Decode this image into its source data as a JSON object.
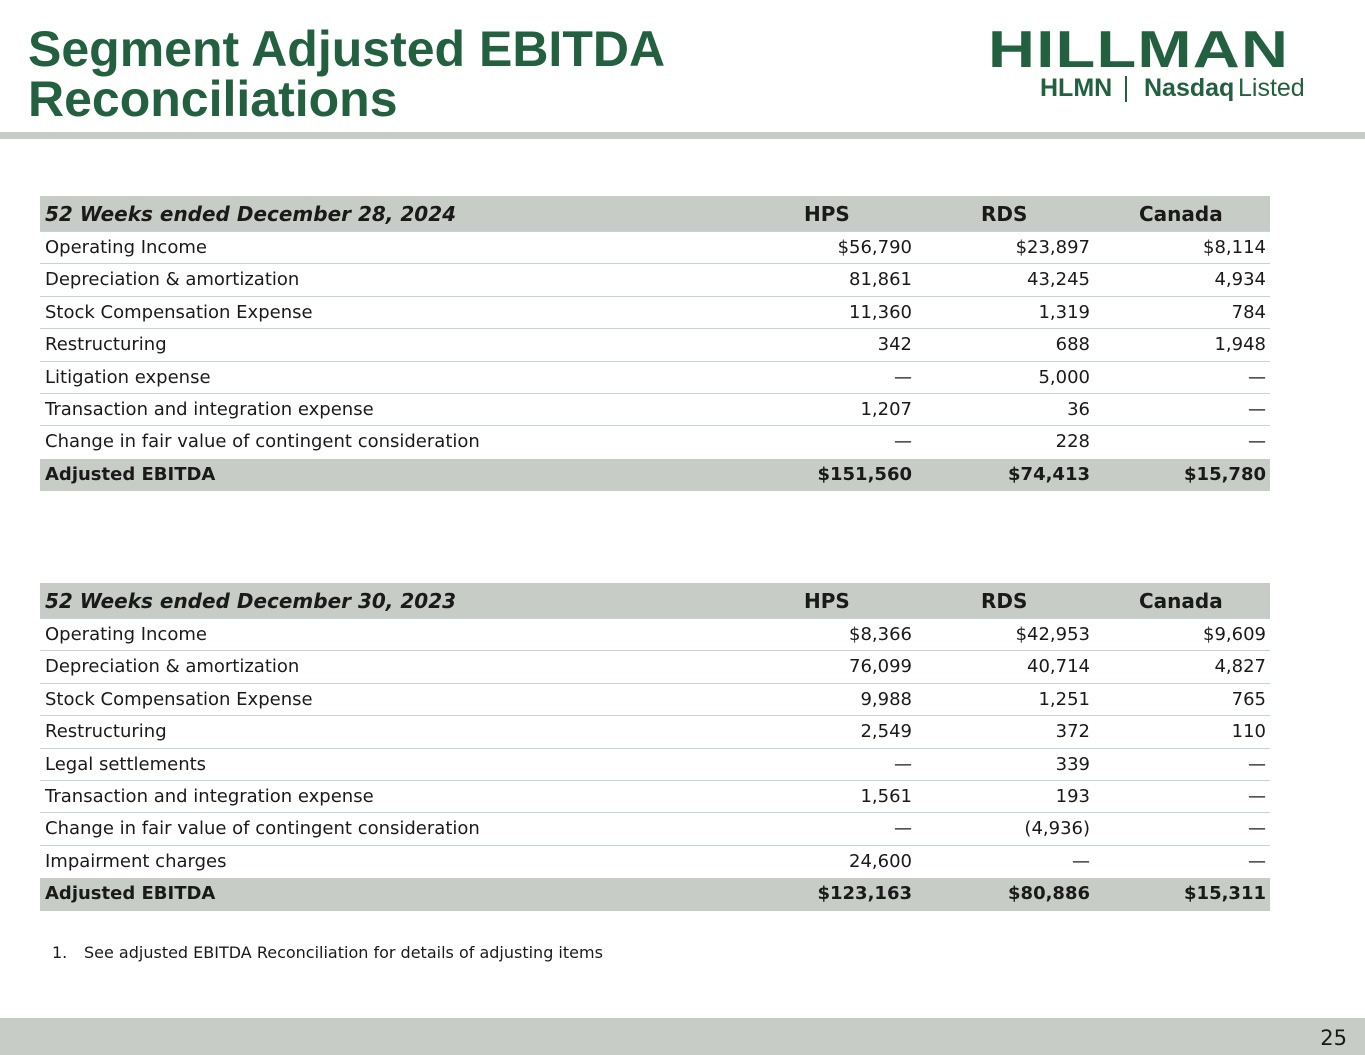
{
  "header": {
    "title": [
      "Segment Adjusted EBITDA",
      "Reconciliations"
    ],
    "logo": {
      "name": "HILLMAN",
      "ticker": "HLMN",
      "exchange": "Nasdaq",
      "status": "Listed"
    }
  },
  "tables": [
    {
      "columns": [
        "52 Weeks ended December 28, 2024",
        "HPS",
        "RDS",
        "Canada"
      ],
      "rows": [
        [
          "Operating Income",
          "$56,790",
          "$23,897",
          "$8,114"
        ],
        [
          "Depreciation & amortization",
          "81,861",
          "43,245",
          "4,934"
        ],
        [
          "Stock Compensation Expense",
          "11,360",
          "1,319",
          "784"
        ],
        [
          "Restructuring",
          "342",
          "688",
          "1,948"
        ],
        [
          "Litigation expense",
          "—",
          "5,000",
          "—"
        ],
        [
          "Transaction and integration expense",
          "1,207",
          "36",
          "—"
        ],
        [
          "Change in fair value of contingent consideration",
          "—",
          "228",
          "—"
        ]
      ],
      "total": [
        "Adjusted EBITDA",
        "$151,560",
        "$74,413",
        "$15,780"
      ]
    },
    {
      "columns": [
        "52 Weeks ended December 30, 2023",
        "HPS",
        "RDS",
        "Canada"
      ],
      "rows": [
        [
          "Operating Income",
          "$8,366",
          "$42,953",
          "$9,609"
        ],
        [
          "Depreciation & amortization",
          "76,099",
          "40,714",
          "4,827"
        ],
        [
          "Stock Compensation Expense",
          "9,988",
          "1,251",
          "765"
        ],
        [
          "Restructuring",
          "2,549",
          "372",
          "110"
        ],
        [
          "Legal settlements",
          "—",
          "339",
          "—"
        ],
        [
          "Transaction and integration expense",
          "1,561",
          "193",
          "—"
        ],
        [
          "Change in fair value of contingent consideration",
          "—",
          "(4,936)",
          "—"
        ],
        [
          "Impairment charges",
          "24,600",
          "—",
          "—"
        ]
      ],
      "total": [
        "Adjusted EBITDA",
        "$123,163",
        "$80,886",
        "$15,311"
      ]
    }
  ],
  "footnote": {
    "number": "1.",
    "text": "See adjusted EBITDA Reconciliation for details of adjusting items"
  },
  "page_number": "25"
}
